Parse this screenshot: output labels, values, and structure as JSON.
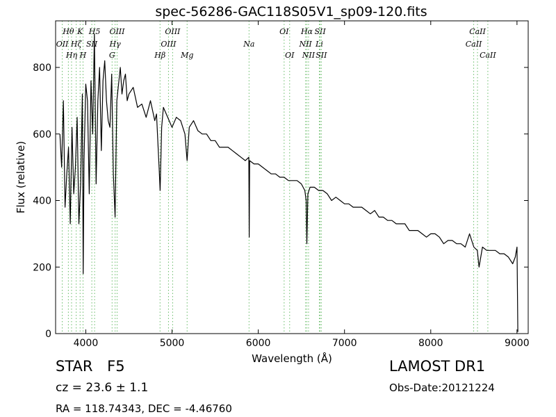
{
  "chart_data": {
    "type": "line",
    "title": "spec-56286-GAC118S05V1_sp09-120.fits",
    "xlabel": "Wavelength (Å)",
    "ylabel": "Flux (relative)",
    "xlim": [
      3650,
      9130
    ],
    "ylim": [
      0,
      940
    ],
    "xticks": [
      4000,
      5000,
      6000,
      7000,
      8000,
      9000
    ],
    "yticks": [
      0,
      200,
      400,
      600,
      800
    ],
    "grid": false,
    "line_color": "#000000",
    "marker_color": "#66bb66",
    "series": [
      {
        "values_desc": "observed spectrum",
        "x": [
          3700,
          3720,
          3740,
          3760,
          3780,
          3800,
          3820,
          3840,
          3860,
          3880,
          3900,
          3920,
          3940,
          3960,
          3970,
          3980,
          4000,
          4020,
          4040,
          4060,
          4080,
          4100,
          4120,
          4140,
          4160,
          4180,
          4200,
          4220,
          4240,
          4260,
          4280,
          4300,
          4320,
          4340,
          4360,
          4380,
          4400,
          4420,
          4440,
          4460,
          4480,
          4500,
          4550,
          4600,
          4650,
          4700,
          4750,
          4800,
          4820,
          4850,
          4862,
          4880,
          4900,
          4950,
          5000,
          5050,
          5100,
          5150,
          5175,
          5200,
          5250,
          5300,
          5350,
          5400,
          5450,
          5500,
          5550,
          5600,
          5650,
          5700,
          5750,
          5800,
          5850,
          5890,
          5895,
          5900,
          5950,
          6000,
          6050,
          6100,
          6150,
          6200,
          6250,
          6300,
          6350,
          6400,
          6450,
          6500,
          6540,
          6555,
          6563,
          6575,
          6600,
          6650,
          6700,
          6750,
          6800,
          6850,
          6900,
          6950,
          7000,
          7050,
          7100,
          7150,
          7200,
          7250,
          7300,
          7350,
          7400,
          7450,
          7500,
          7550,
          7600,
          7650,
          7700,
          7750,
          7800,
          7850,
          7900,
          7950,
          8000,
          8050,
          8100,
          8150,
          8200,
          8250,
          8300,
          8350,
          8400,
          8450,
          8500,
          8540,
          8560,
          8600,
          8650,
          8700,
          8750,
          8800,
          8850,
          8900,
          8950,
          8980,
          9000,
          9010
        ],
        "y": [
          600,
          500,
          700,
          380,
          480,
          560,
          330,
          620,
          420,
          500,
          650,
          330,
          450,
          720,
          180,
          520,
          750,
          700,
          420,
          760,
          600,
          900,
          450,
          700,
          800,
          550,
          760,
          820,
          700,
          640,
          620,
          780,
          480,
          350,
          700,
          750,
          800,
          720,
          760,
          780,
          700,
          720,
          740,
          680,
          690,
          650,
          700,
          640,
          660,
          500,
          430,
          620,
          680,
          650,
          620,
          650,
          640,
          600,
          520,
          620,
          640,
          610,
          600,
          600,
          580,
          580,
          560,
          560,
          560,
          550,
          540,
          530,
          520,
          530,
          290,
          520,
          510,
          510,
          500,
          490,
          480,
          480,
          470,
          470,
          460,
          460,
          460,
          450,
          430,
          400,
          270,
          420,
          440,
          440,
          430,
          430,
          420,
          400,
          410,
          400,
          390,
          390,
          380,
          380,
          380,
          370,
          360,
          370,
          350,
          350,
          340,
          340,
          330,
          330,
          330,
          310,
          310,
          310,
          300,
          290,
          300,
          300,
          290,
          270,
          280,
          280,
          270,
          270,
          260,
          300,
          260,
          250,
          200,
          260,
          250,
          250,
          250,
          240,
          240,
          230,
          210,
          230,
          260,
          5
        ]
      }
    ],
    "line_markers": [
      {
        "label": "Hθ",
        "x": 3798,
        "row": 1
      },
      {
        "label": "K",
        "x": 3934,
        "row": 1
      },
      {
        "label": "H5",
        "x": 4102,
        "row": 1
      },
      {
        "label": "OIII",
        "x": 4363,
        "row": 1
      },
      {
        "label": "OIII",
        "x": 5007,
        "row": 1
      },
      {
        "label": "OI",
        "x": 6300,
        "row": 1
      },
      {
        "label": "Hα",
        "x": 6563,
        "row": 1
      },
      {
        "label": "SII",
        "x": 6717,
        "row": 1
      },
      {
        "label": "CaII",
        "x": 8542,
        "row": 1
      },
      {
        "label": "OII",
        "x": 3727,
        "row": 2
      },
      {
        "label": "Hζ",
        "x": 3889,
        "row": 2
      },
      {
        "label": "SII",
        "x": 4070,
        "row": 2
      },
      {
        "label": "Hγ",
        "x": 4340,
        "row": 2
      },
      {
        "label": "OIII",
        "x": 4959,
        "row": 2
      },
      {
        "label": "Na",
        "x": 5893,
        "row": 2
      },
      {
        "label": "NII",
        "x": 6548,
        "row": 2
      },
      {
        "label": "Li",
        "x": 6708,
        "row": 2
      },
      {
        "label": "CaII",
        "x": 8498,
        "row": 2
      },
      {
        "label": "Hη",
        "x": 3835,
        "row": 3
      },
      {
        "label": "H",
        "x": 3968,
        "row": 3
      },
      {
        "label": "G",
        "x": 4305,
        "row": 3
      },
      {
        "label": "Hβ",
        "x": 4861,
        "row": 3
      },
      {
        "label": "Mg",
        "x": 5175,
        "row": 3
      },
      {
        "label": "OI",
        "x": 6364,
        "row": 3
      },
      {
        "label": "NII",
        "x": 6583,
        "row": 3
      },
      {
        "label": "SII",
        "x": 6731,
        "row": 3
      },
      {
        "label": "CaII",
        "x": 8662,
        "row": 3
      }
    ]
  },
  "info": {
    "class_label": "STAR",
    "subclass": "F5",
    "cz": "cz = 23.6 ± 1.1",
    "coords": "RA = 118.74343, DEC = -4.46760",
    "survey": "LAMOST DR1",
    "obs_date": "Obs-Date:20121224"
  }
}
